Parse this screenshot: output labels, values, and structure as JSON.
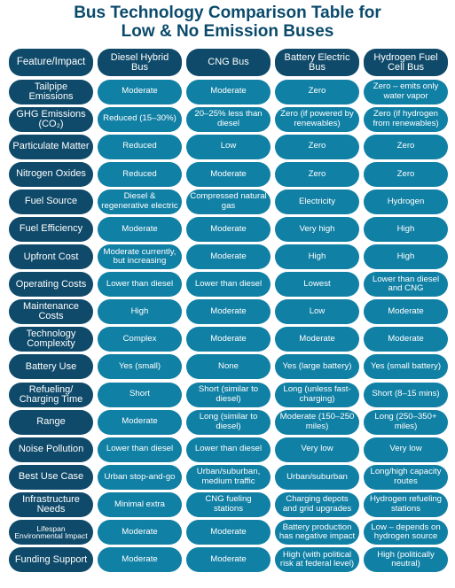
{
  "title_line1": "Bus Technology Comparison Table for",
  "title_line2": "Low & No Emission Buses",
  "headers": [
    "Feature/Impact",
    "Diesel Hybrid Bus",
    "CNG Bus",
    "Battery Electric Bus",
    "Hydrogen Fuel Cell Bus"
  ],
  "rows": [
    {
      "feature": "Tailpipe Emissions",
      "values": [
        "Moderate",
        "Moderate",
        "Zero",
        "Zero – emits only water vapor"
      ]
    },
    {
      "feature": "GHG Emissions (CO₂)",
      "values": [
        "Reduced (15–30%)",
        "20–25% less than diesel",
        "Zero (if powered by renewables)",
        "Zero (if hydrogen from renewables)"
      ]
    },
    {
      "feature": "Particulate Matter",
      "values": [
        "Reduced",
        "Low",
        "Zero",
        "Zero"
      ]
    },
    {
      "feature": "Nitrogen Oxides",
      "values": [
        "Reduced",
        "Moderate",
        "Zero",
        "Zero"
      ]
    },
    {
      "feature": "Fuel Source",
      "values": [
        "Diesel & regenerative electric",
        "Compressed natural gas",
        "Electricity",
        "Hydrogen"
      ]
    },
    {
      "feature": "Fuel Efficiency",
      "values": [
        "Moderate",
        "Moderate",
        "Very high",
        "High"
      ]
    },
    {
      "feature": "Upfront Cost",
      "values": [
        "Moderate currently, but increasing",
        "Moderate",
        "High",
        "High"
      ]
    },
    {
      "feature": "Operating Costs",
      "values": [
        "Lower than diesel",
        "Lower than diesel",
        "Lowest",
        "Lower than diesel and CNG"
      ]
    },
    {
      "feature": "Maintenance Costs",
      "values": [
        "High",
        "Moderate",
        "Low",
        "Moderate"
      ]
    },
    {
      "feature": "Technology Complexity",
      "values": [
        "Complex",
        "Moderate",
        "Moderate",
        "Moderate"
      ]
    },
    {
      "feature": "Battery Use",
      "values": [
        "Yes (small)",
        "None",
        "Yes (large battery)",
        "Yes (small battery)"
      ]
    },
    {
      "feature": "Refueling/ Charging Time",
      "values": [
        "Short",
        "Short (similar to diesel)",
        "Long (unless fast-charging)",
        "Short (8–15 mins)"
      ]
    },
    {
      "feature": "Range",
      "values": [
        "Moderate",
        "Long (similar to diesel)",
        "Moderate (150–250 miles)",
        "Long (250–350+ miles)"
      ]
    },
    {
      "feature": "Noise Pollution",
      "values": [
        "Lower than diesel",
        "Lower than diesel",
        "Very low",
        "Very low"
      ]
    },
    {
      "feature": "Best Use Case",
      "values": [
        "Urban stop-and-go",
        "Urban/suburban, medium traffic",
        "Urban/suburban",
        "Long/high capacity routes"
      ]
    },
    {
      "feature": "Infrastructure Needs",
      "values": [
        "Minimal extra",
        "CNG fueling stations",
        "Charging depots and grid upgrades",
        "Hydrogen refueling stations"
      ]
    },
    {
      "feature": "Lifespan Environmental Impact",
      "values": [
        "Moderate",
        "Moderate",
        "Battery production has negative impact",
        "Low – depends on hydrogen source"
      ]
    },
    {
      "feature": "Funding Support",
      "values": [
        "Moderate",
        "Moderate",
        "High (with political risk at federal level)",
        "High (politically neutral)"
      ]
    }
  ]
}
